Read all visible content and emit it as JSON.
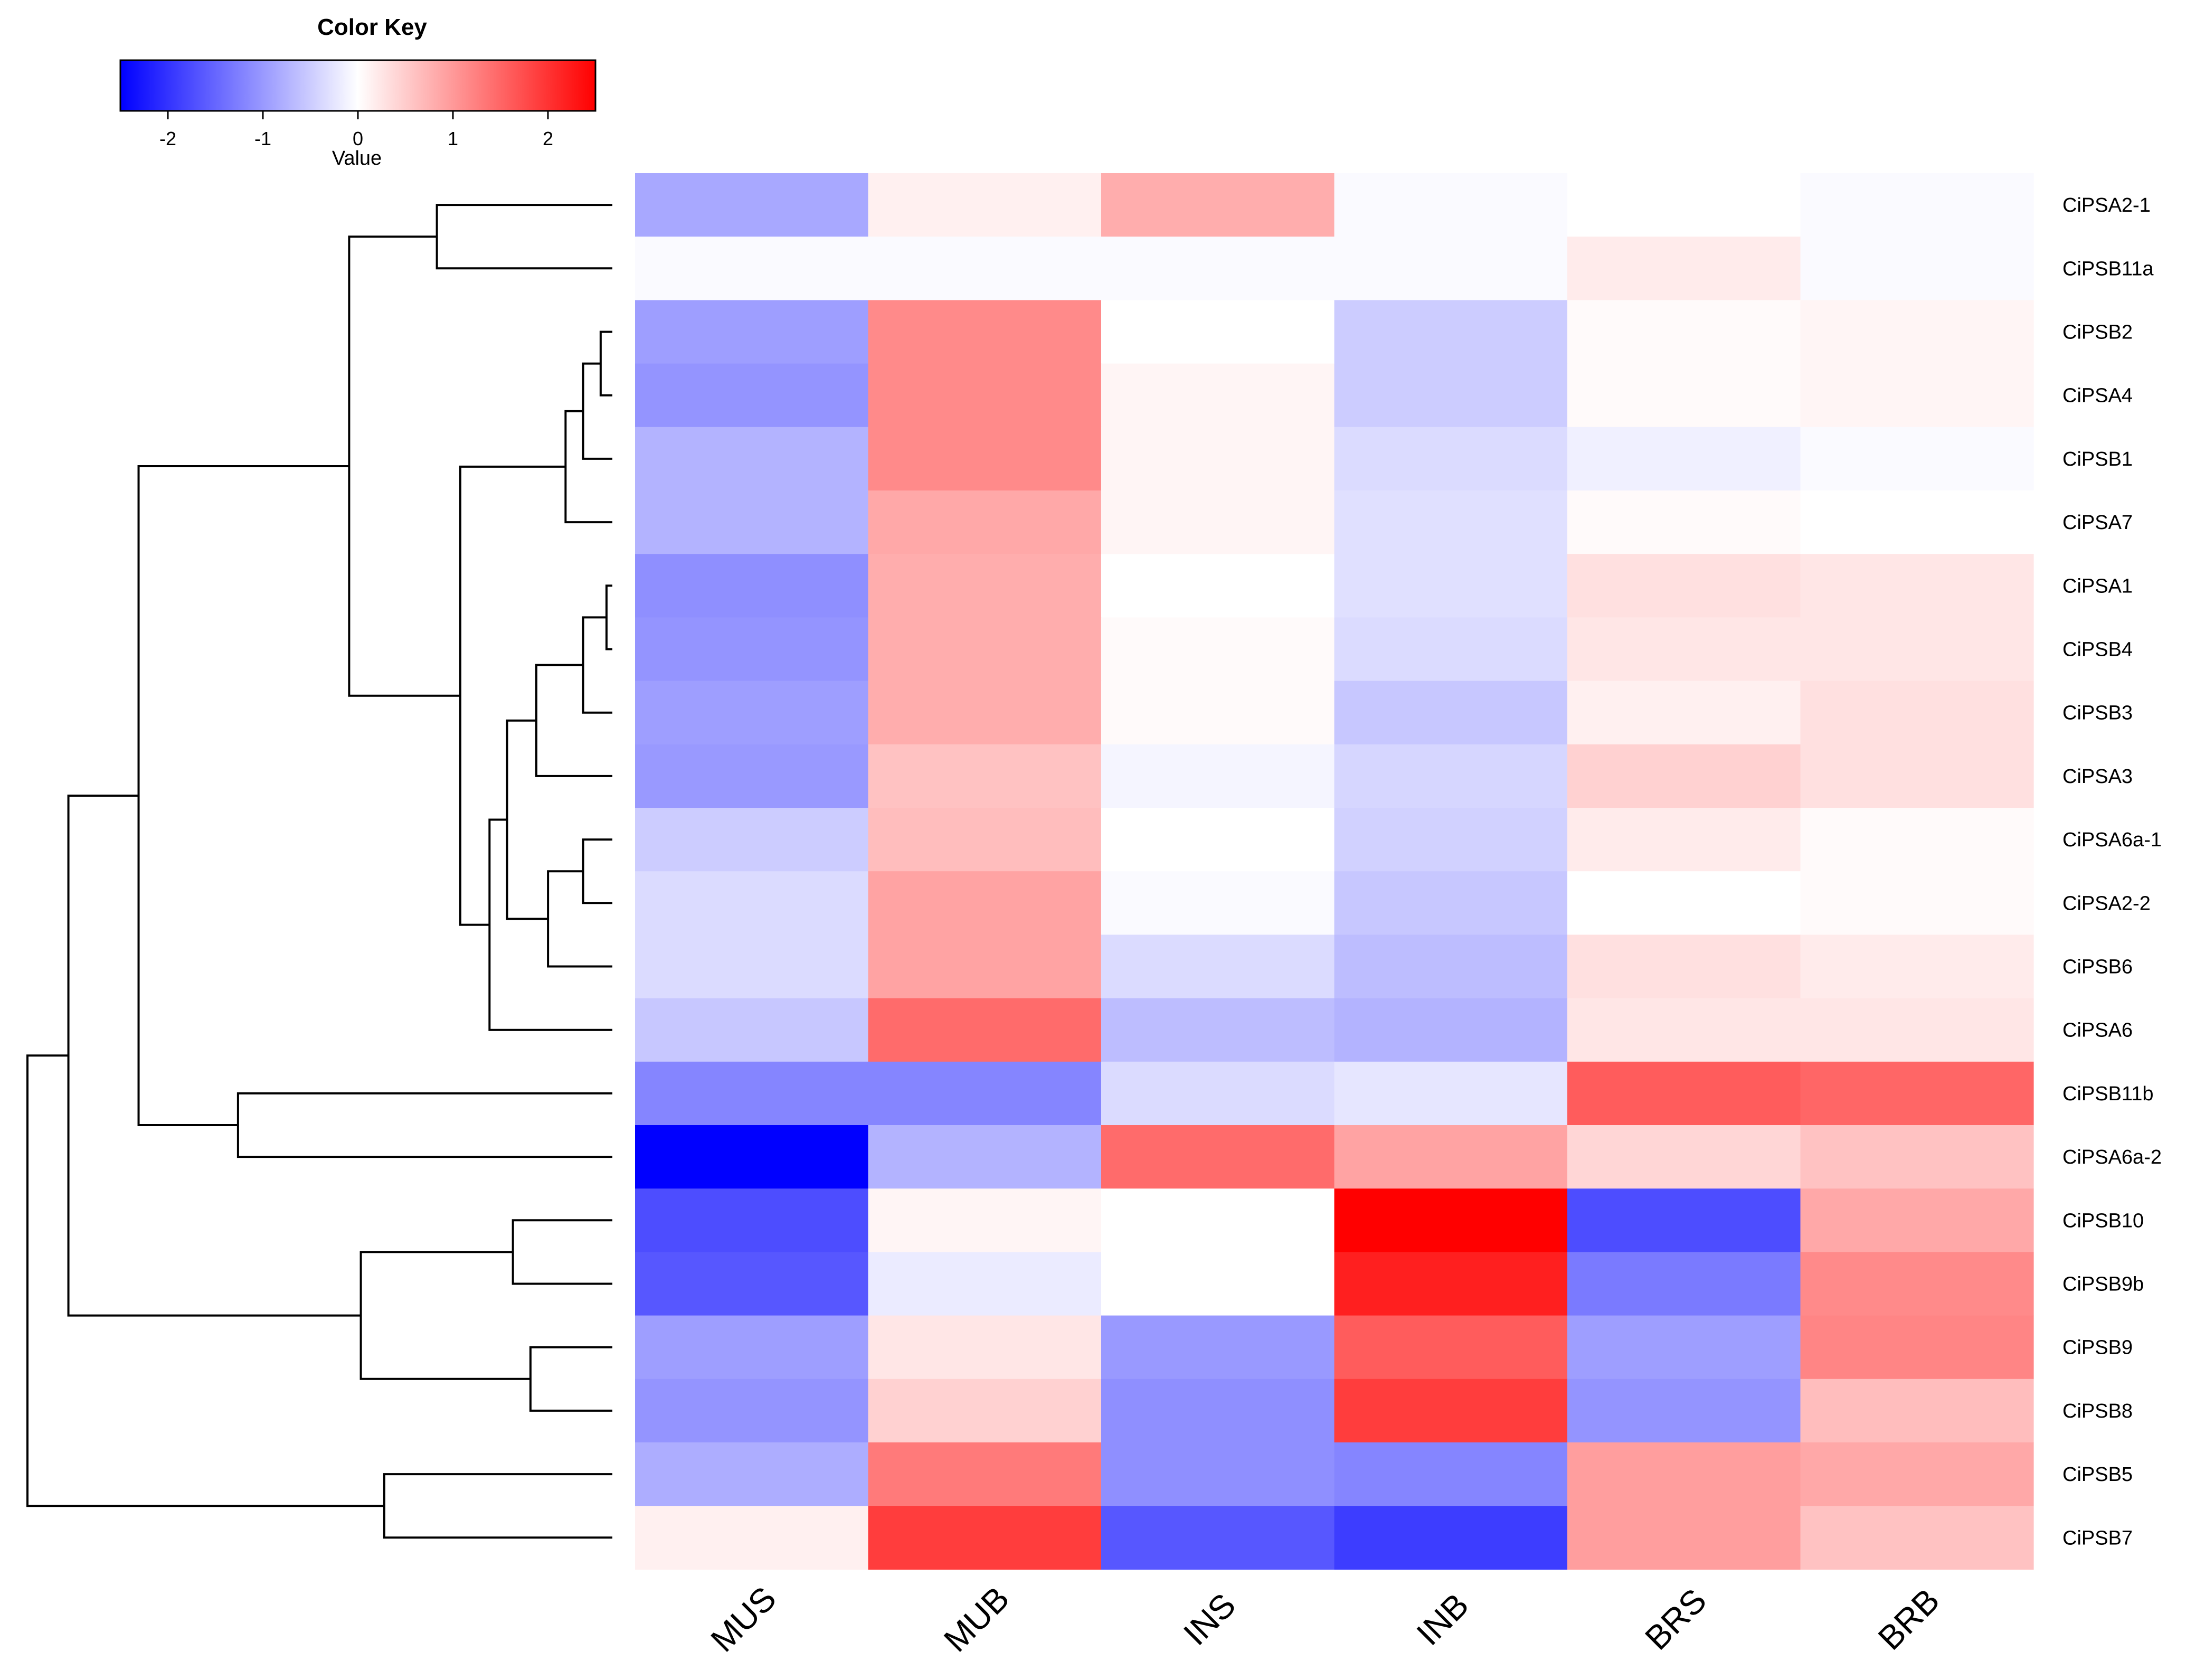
{
  "chart_data": {
    "type": "heatmap",
    "color_key": {
      "title": "Color Key",
      "xlabel": "Value",
      "range": [
        -2.5,
        2.5
      ],
      "ticks": [
        -2,
        -1,
        0,
        1,
        2
      ],
      "tick_labels": [
        "-2",
        "-1",
        "0",
        "1",
        "2"
      ],
      "low_color": "#0000ff",
      "mid_color": "#ffffff",
      "high_color": "#ff0000"
    },
    "columns": [
      "MUS",
      "MUB",
      "INS",
      "INB",
      "BRS",
      "BRB"
    ],
    "rows": [
      "CiPSA2-1",
      "CiPSB11a",
      "CiPSB2",
      "CiPSA4",
      "CiPSB1",
      "CiPSA7",
      "CiPSA1",
      "CiPSB4",
      "CiPSB3",
      "CiPSA3",
      "CiPSA6a-1",
      "CiPSA2-2",
      "CiPSB6",
      "CiPSA6",
      "CiPSB11b",
      "CiPSA6a-2",
      "CiPSB10",
      "CiPSB9b",
      "CiPSB9",
      "CiPSB8",
      "CiPSB5",
      "CiPSB7"
    ],
    "values": [
      [
        -0.85,
        0.15,
        0.8,
        -0.05,
        0.0,
        -0.05
      ],
      [
        -0.05,
        -0.05,
        -0.05,
        -0.05,
        0.2,
        -0.05
      ],
      [
        -0.95,
        1.15,
        0.0,
        -0.5,
        0.05,
        0.1
      ],
      [
        -1.05,
        1.15,
        0.1,
        -0.5,
        0.05,
        0.1
      ],
      [
        -0.75,
        1.15,
        0.1,
        -0.35,
        -0.15,
        -0.05
      ],
      [
        -0.75,
        0.85,
        0.1,
        -0.3,
        0.05,
        0.0
      ],
      [
        -1.1,
        0.8,
        0.0,
        -0.3,
        0.3,
        0.25
      ],
      [
        -1.05,
        0.8,
        0.05,
        -0.35,
        0.25,
        0.25
      ],
      [
        -0.95,
        0.8,
        0.05,
        -0.55,
        0.15,
        0.3
      ],
      [
        -1.0,
        0.6,
        -0.1,
        -0.4,
        0.45,
        0.3
      ],
      [
        -0.5,
        0.65,
        0.0,
        -0.45,
        0.2,
        0.05
      ],
      [
        -0.35,
        0.9,
        -0.05,
        -0.55,
        0.0,
        0.05
      ],
      [
        -0.35,
        0.9,
        -0.35,
        -0.65,
        0.3,
        0.2
      ],
      [
        -0.55,
        1.45,
        -0.65,
        -0.75,
        0.25,
        0.25
      ],
      [
        -1.2,
        -1.2,
        -0.35,
        -0.25,
        1.6,
        1.5
      ],
      [
        -2.5,
        -0.75,
        1.45,
        0.9,
        0.4,
        0.6
      ],
      [
        -1.75,
        0.1,
        0.0,
        2.5,
        -1.75,
        0.85
      ],
      [
        -1.65,
        -0.2,
        0.0,
        2.2,
        -1.3,
        1.15
      ],
      [
        -0.95,
        0.25,
        -1.0,
        1.6,
        -0.95,
        1.2
      ],
      [
        -1.05,
        0.45,
        -1.1,
        1.9,
        -1.05,
        0.65
      ],
      [
        -0.8,
        1.3,
        -1.1,
        -1.2,
        0.95,
        0.85
      ],
      [
        0.15,
        1.9,
        -1.65,
        -1.9,
        0.95,
        0.6
      ]
    ],
    "dendrogram": {
      "leaves": [
        0,
        1,
        2,
        3,
        4,
        5,
        6,
        7,
        8,
        9,
        10,
        11,
        12,
        13,
        14,
        15,
        16,
        17,
        18,
        19,
        20,
        21
      ],
      "max_height": 10,
      "merges": [
        {
          "a": 6,
          "b": 7,
          "h": 0.1
        },
        {
          "a": 2,
          "b": 3,
          "h": 0.2
        },
        {
          "a": "m1",
          "b": 4,
          "h": 0.5
        },
        {
          "a": "m0",
          "b": 8,
          "h": 0.5
        },
        {
          "a": 10,
          "b": 11,
          "h": 0.5
        },
        {
          "a": "m2",
          "b": 5,
          "h": 0.8
        },
        {
          "a": "m4",
          "b": 12,
          "h": 1.1
        },
        {
          "a": "m3",
          "b": 9,
          "h": 1.3
        },
        {
          "a": "m7",
          "b": "m6",
          "h": 1.8
        },
        {
          "a": "m8",
          "b": 13,
          "h": 2.1
        },
        {
          "a": "m5",
          "b": "m9",
          "h": 2.6
        },
        {
          "a": 0,
          "b": 1,
          "h": 3.0
        },
        {
          "a": 16,
          "b": 17,
          "h": 1.7
        },
        {
          "a": 18,
          "b": 19,
          "h": 1.4
        },
        {
          "a": 20,
          "b": 21,
          "h": 3.9
        },
        {
          "a": "m10",
          "b": "m11",
          "h": 4.5
        },
        {
          "a": 14,
          "b": 15,
          "h": 6.4
        },
        {
          "a": "m12",
          "b": "m13",
          "h": 4.3
        },
        {
          "a": "m15",
          "b": "m16",
          "h": 8.1
        },
        {
          "a": "m18",
          "b": "m17",
          "h": 9.3
        },
        {
          "a": "m19",
          "b": "m14",
          "h": 10.0
        }
      ]
    }
  }
}
